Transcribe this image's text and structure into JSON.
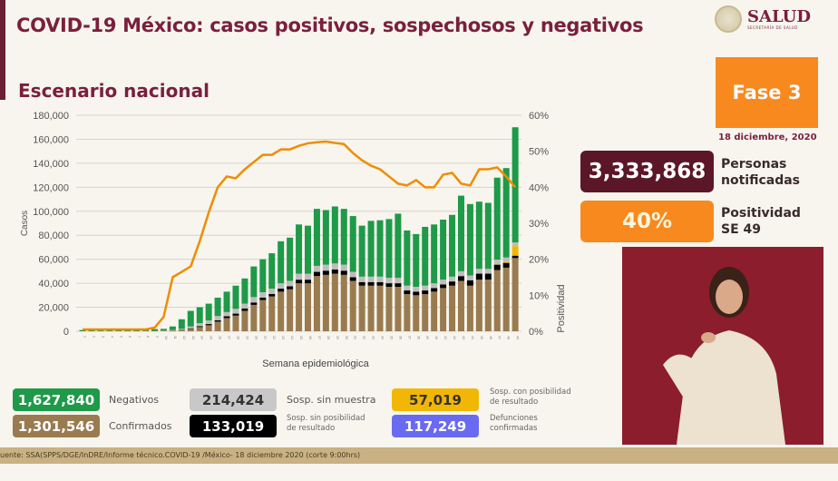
{
  "header": {
    "title": "COVID-19 México: casos positivos, sospechosos y negativos",
    "subtitle": "Escenario nacional",
    "logo_text": "SALUD",
    "logo_sub": "SECRETARÍA DE SALUD"
  },
  "phase": {
    "label": "Fase 3",
    "date": "18 diciembre, 2020"
  },
  "kpis": [
    {
      "value": "3,333,868",
      "label1": "Personas",
      "label2": "notificadas"
    },
    {
      "value": "40%",
      "label1": "Positividad",
      "label2": "SE 49"
    }
  ],
  "legend": [
    {
      "value": "1,627,840",
      "label": "Negativos",
      "color": "#1e9a48"
    },
    {
      "value": "214,424",
      "label": "Sosp. sin muestra",
      "color": "#bdbdbd"
    },
    {
      "value": "57,019",
      "label": "Sosp. con posibilidad",
      "label2": "de resultado",
      "color": "#f2b705"
    },
    {
      "value": "1,301,546",
      "label": "Confirmados",
      "color": "#9a7b4f"
    },
    {
      "value": "133,019",
      "label": "Sosp. sin posibilidad",
      "label2": "de resultado",
      "color": "#000000"
    },
    {
      "value": "117,249",
      "label": "Defunciones",
      "label2": "confirmadas",
      "color": "#6a6af0"
    }
  ],
  "footer": "uente: SSA(SPPS/DGE/InDRE/Informe técnico.COVID-19 /México- 18 diciembre 2020 (corte 9:00hrs)",
  "chart_data": {
    "type": "bar",
    "stacked": true,
    "xlabel": "Semana epidemiológica",
    "ylabel": "Casos",
    "y2label": "Positividad",
    "ylim": [
      0,
      180000
    ],
    "yticks": [
      "0",
      "20,000",
      "40,000",
      "60,000",
      "80,000",
      "100,000",
      "120,000",
      "140,000",
      "160,000",
      "180,000"
    ],
    "y2lim": [
      0,
      60
    ],
    "y2ticks": [
      "0%",
      "10%",
      "20%",
      "30%",
      "40%",
      "50%",
      "60%"
    ],
    "categories": [
      1,
      2,
      3,
      4,
      5,
      6,
      7,
      8,
      9,
      10,
      11,
      12,
      13,
      14,
      15,
      16,
      17,
      18,
      19,
      20,
      21,
      22,
      23,
      24,
      25,
      26,
      27,
      28,
      29,
      30,
      31,
      32,
      33,
      34,
      35,
      36,
      37,
      38,
      39,
      40,
      41,
      42,
      43,
      44,
      45,
      46,
      47,
      48,
      49
    ],
    "series": [
      {
        "name": "Confirmados",
        "color": "#9a7b4f",
        "values": [
          0,
          0,
          0,
          0,
          0,
          0,
          0,
          100,
          300,
          400,
          500,
          1000,
          2000,
          3500,
          5000,
          8000,
          11000,
          13000,
          17000,
          22000,
          26000,
          29000,
          33000,
          35000,
          40000,
          40000,
          46000,
          47000,
          48000,
          47000,
          42000,
          38000,
          38000,
          38000,
          37000,
          37000,
          31000,
          30000,
          31000,
          33000,
          36000,
          38000,
          42000,
          38000,
          43000,
          43000,
          51000,
          53000,
          61000
        ]
      },
      {
        "name": "Sosp. sin posibilidad de resultado",
        "color": "#000000",
        "values": [
          0,
          0,
          0,
          0,
          0,
          0,
          0,
          0,
          0,
          0,
          100,
          300,
          500,
          800,
          1000,
          1200,
          1500,
          1700,
          2000,
          2000,
          2000,
          2000,
          2500,
          2500,
          3000,
          3000,
          3500,
          3500,
          3500,
          3500,
          3000,
          3000,
          3000,
          3000,
          3000,
          3000,
          3000,
          3000,
          3000,
          3000,
          3000,
          3500,
          4000,
          4500,
          5000,
          5000,
          4500,
          4000,
          2000
        ]
      },
      {
        "name": "Sosp. con posibilidad de resultado",
        "color": "#f2b705",
        "values": [
          0,
          0,
          0,
          0,
          0,
          0,
          0,
          0,
          0,
          0,
          0,
          0,
          0,
          0,
          0,
          0,
          0,
          0,
          0,
          0,
          0,
          0,
          0,
          0,
          0,
          0,
          0,
          0,
          0,
          0,
          0,
          0,
          0,
          0,
          0,
          0,
          0,
          0,
          0,
          0,
          0,
          0,
          0,
          0,
          0,
          0,
          200,
          1000,
          8000
        ]
      },
      {
        "name": "Sosp. sin muestra",
        "color": "#bdbdbd",
        "values": [
          0,
          0,
          0,
          0,
          0,
          0,
          0,
          0,
          0,
          200,
          400,
          700,
          1500,
          2500,
          3000,
          3500,
          3500,
          4000,
          4000,
          4500,
          4500,
          4500,
          4500,
          4500,
          5000,
          5000,
          5000,
          5000,
          5000,
          5000,
          4500,
          4500,
          4500,
          4500,
          4500,
          4500,
          4000,
          4000,
          4000,
          4000,
          4000,
          4000,
          4000,
          4000,
          4000,
          4000,
          4000,
          3500,
          3000
        ]
      },
      {
        "name": "Negativos",
        "color": "#1e9a48",
        "values": [
          1000,
          1000,
          2000,
          2000,
          1500,
          1500,
          1500,
          1500,
          1500,
          1400,
          3000,
          8000,
          13000,
          13200,
          14000,
          15300,
          17000,
          19300,
          21000,
          25500,
          27500,
          29500,
          35000,
          36000,
          41000,
          40000,
          47500,
          45500,
          47500,
          46500,
          46500,
          42500,
          46500,
          47000,
          49000,
          53500,
          46000,
          44000,
          49000,
          49000,
          50000,
          51500,
          63000,
          59500,
          56000,
          55000,
          68300,
          74500,
          96000
        ]
      }
    ],
    "line": {
      "name": "Positividad",
      "color": "#f08c00",
      "axis": "right",
      "values": [
        0.5,
        0.5,
        0.5,
        0.5,
        0.5,
        0.5,
        0.5,
        0.5,
        1,
        4,
        15,
        16.5,
        18,
        25,
        33,
        40,
        43,
        42.5,
        45,
        47,
        49,
        49,
        50.5,
        50.5,
        51.5,
        52.2,
        52.5,
        52.7,
        52.3,
        52,
        49.5,
        47.5,
        46,
        45,
        43,
        41,
        40.5,
        42,
        40,
        40,
        43.5,
        44,
        41,
        40.5,
        45,
        45,
        45.5,
        43,
        40
      ]
    }
  }
}
